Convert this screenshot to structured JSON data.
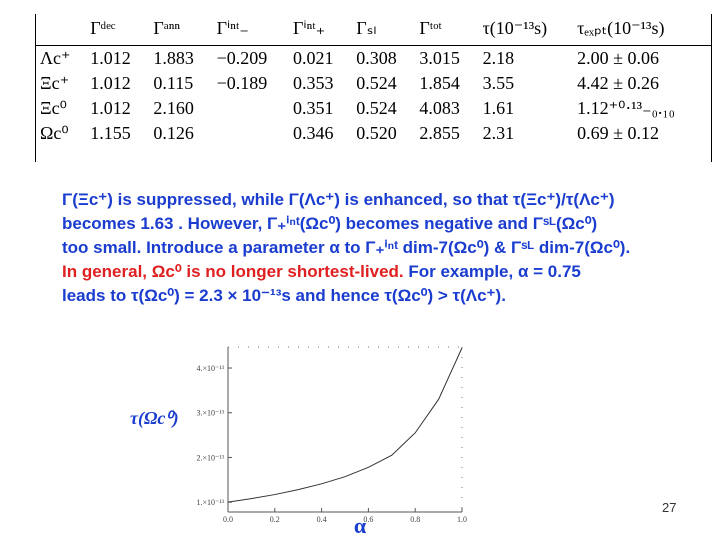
{
  "table": {
    "header": [
      "Γᵈᵉᶜ",
      "Γᵃⁿⁿ",
      "Γⁱⁿᵗ₋",
      "Γⁱⁿᵗ₊",
      "Γₛₗ",
      "Γᵗᵒᵗ",
      "τ(10⁻¹³s)",
      "τₑₓₚₜ(10⁻¹³s)"
    ],
    "rows": [
      [
        "Λc⁺",
        "1.012",
        "1.883",
        "−0.209",
        "0.021",
        "0.308",
        "3.015",
        "2.18",
        "2.00 ± 0.06"
      ],
      [
        "Ξc⁺",
        "1.012",
        "0.115",
        "−0.189",
        "0.353",
        "0.524",
        "1.854",
        "3.55",
        "4.42 ± 0.26"
      ],
      [
        "Ξc⁰",
        "1.012",
        "2.160",
        null,
        "0.351",
        "0.524",
        "4.083",
        "1.61",
        "1.12⁺⁰·¹³₋₀.₁₀"
      ],
      [
        "Ωc⁰",
        "1.155",
        "0.126",
        null,
        "0.346",
        "0.520",
        "2.855",
        "2.31",
        "0.69 ± 0.12"
      ]
    ]
  },
  "text": {
    "lines": [
      [
        {
          "t": "Γ(Ξc⁺) is suppressed, while Γ(Λc⁺) is enhanced, so that τ(Ξc⁺)/τ(Λc⁺)",
          "color": "#1a3ccf"
        }
      ],
      [
        {
          "t": "becomes 1.63 . However,  Γ₊ⁱⁿᵗ(Ωc⁰) becomes negative and  Γˢᴸ(Ωc⁰)",
          "color": "#1a3ccf"
        }
      ],
      [
        {
          "t": "too small. Introduce a parameter α to Γ₊ⁱⁿᵗ dim-7(Ωc⁰) & Γˢᴸ dim-7(Ωc⁰).",
          "color": "#1a3ccf"
        }
      ],
      [
        {
          "t": "In general, Ωc⁰  is no longer shortest-lived.",
          "color": "#e02020"
        },
        {
          "t": " For example, α = 0.75",
          "color": "#1a3ccf"
        }
      ],
      [
        {
          "t": "leads to τ(Ωc⁰) = 2.3 × 10⁻¹³s  and hence τ(Ωc⁰) > τ(Λc⁺).",
          "color": "#1a3ccf"
        }
      ]
    ]
  },
  "chart_data": {
    "type": "line",
    "x_label": "α",
    "y_label": "τ(Ωc⁰)",
    "x": [
      0,
      0.1,
      0.2,
      0.3,
      0.4,
      0.5,
      0.6,
      0.7,
      0.75,
      0.8,
      0.9,
      1.0
    ],
    "series": [
      {
        "color": "#333333",
        "values": [
          1e-13,
          1.08e-13,
          1.17e-13,
          1.28e-13,
          1.41e-13,
          1.57e-13,
          1.78e-13,
          2.05e-13,
          2.3e-13,
          2.55e-13,
          3.3e-13,
          4.45e-13
        ]
      }
    ],
    "xlim": [
      0,
      1.0
    ],
    "ylim": [
      7.8e-14,
      4.47e-13
    ],
    "xticks": [
      {
        "value": 0,
        "label": "0.0"
      },
      0.2,
      0.4,
      0.6,
      0.8,
      {
        "value": 1.0,
        "label": "1.0"
      }
    ],
    "yticks": [
      {
        "value": 1e-13,
        "label": "1.×10⁻¹³"
      },
      {
        "value": 2e-13,
        "label": "2.×10⁻¹³"
      },
      {
        "value": 3e-13,
        "label": "3.×10⁻¹³"
      },
      {
        "value": 4e-13,
        "label": "4.×10⁻¹³"
      }
    ]
  },
  "page_number": "27"
}
